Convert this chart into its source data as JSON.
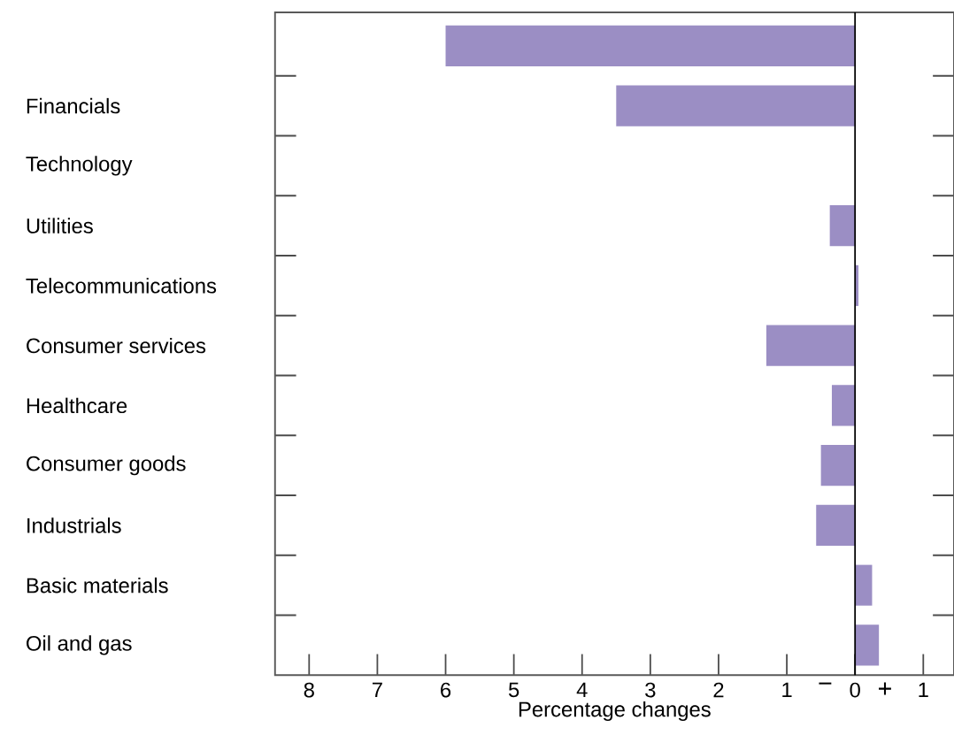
{
  "chart_data": {
    "type": "bar",
    "orientation": "horizontal",
    "xlabel": "Percentage changes",
    "categories": [
      null,
      "Financials",
      "Technology",
      "Utilities",
      "Telecommunications",
      "Consumer services",
      "Healthcare",
      "Consumer goods",
      "Industrials",
      "Basic materials",
      "Oil and gas"
    ],
    "values": [
      -6.0,
      -3.5,
      null,
      -0.37,
      0.05,
      -1.3,
      -0.34,
      -0.5,
      -0.57,
      0.25,
      0.35
    ],
    "color": "#9b8ec4",
    "xlim": [
      -8.5,
      1.45
    ],
    "xticks": [
      {
        "value": -8,
        "label": "8"
      },
      {
        "value": -7,
        "label": "7"
      },
      {
        "value": -6,
        "label": "6"
      },
      {
        "value": -5,
        "label": "5"
      },
      {
        "value": -4,
        "label": "4"
      },
      {
        "value": -3,
        "label": "3"
      },
      {
        "value": -2,
        "label": "2"
      },
      {
        "value": -1,
        "label": "1"
      },
      0,
      1
    ],
    "ref_lines": [
      {
        "axis": "x",
        "value": 0
      }
    ],
    "annotations": [
      "−",
      "+"
    ],
    "grid": false
  }
}
